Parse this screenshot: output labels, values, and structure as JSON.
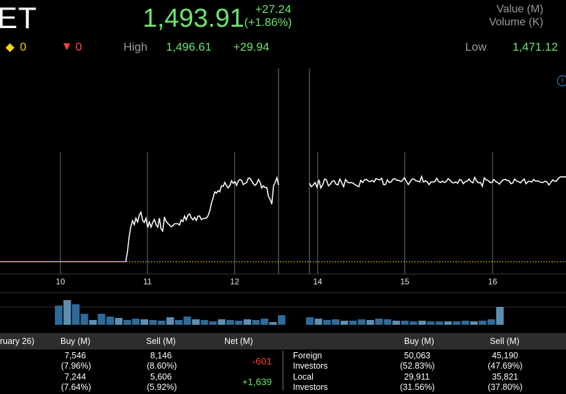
{
  "quote": {
    "symbol": "ET",
    "price": "1,493.91",
    "change": "+27.24",
    "change_pct": "(+1.86%)",
    "up_count": "0",
    "down_count": "0",
    "high_label": "High",
    "high_value": "1,496.61",
    "high_change": "+29.94",
    "low_label": "Low",
    "low_value": "1,471.12",
    "legend_value": "Value (M)",
    "legend_volume": "Volume (K)"
  },
  "icons": {
    "up": "diamond-icon",
    "down": "down-triangle-icon",
    "info": "info-icon"
  },
  "colors": {
    "up": "#6fe36f",
    "down": "#ff453a",
    "line": "#ffffff",
    "baseline": "#f2d21b",
    "volume": "#3b6f9e"
  },
  "chart_data": {
    "type": "line",
    "x_ticks": [
      "10",
      "11",
      "12",
      "14",
      "15",
      "16"
    ],
    "series": [
      {
        "values": [
          1466.7,
          1466.7,
          1466.7,
          1466.7,
          1466.7,
          1466.7,
          1466.7,
          1466.7,
          1466.7,
          1466.7,
          1466.7,
          1466.7,
          1466.7,
          1466.7,
          1466.7,
          1466.7,
          1466.7,
          1466.7,
          1466.7,
          1466.7,
          1466.7,
          1466.7,
          1466.7,
          1466.7,
          1466.7,
          1466.7,
          1466.7,
          1466.7,
          1466.7,
          1466.7,
          1466.7,
          1466.7,
          1466.7,
          1466.7,
          1466.7,
          1466.7,
          1466.7,
          1466.7,
          1466.7,
          1466.7,
          1466.7,
          1466.7,
          1466.7,
          1466.7,
          1466.7,
          1466.7,
          1466.7,
          1466.7,
          1466.7,
          1466.7,
          1466.7,
          1466.7,
          1466.7,
          1466.7,
          1466.7,
          1466.7,
          1466.7,
          1466.7,
          1466.7,
          1466.7,
          1466.7,
          1466.7,
          1466.7,
          1466.7,
          1466.7,
          1466.7,
          1466.7,
          1466.7,
          1466.7,
          1466.7,
          1466.7,
          1466.7,
          1466.7,
          1466.7,
          1466.7,
          1466.7,
          1469.2,
          1472.6,
          1475.0,
          1476.3,
          1475.4,
          1476.9,
          1476.0,
          1477.6,
          1478.3,
          1476.4,
          1475.9,
          1476.9,
          1474.7,
          1476.0,
          1474.8,
          1475.9,
          1476.6,
          1475.4,
          1474.8,
          1476.9,
          1474.4,
          1473.9,
          1477.2,
          1476.1,
          1475.7,
          1475.3,
          1474.9,
          1475.1,
          1475.6,
          1475.6,
          1475.6,
          1475.3,
          1476.5,
          1476.1,
          1477.4,
          1476.5,
          1477.6,
          1477.9,
          1477.0,
          1476.5,
          1477.1,
          1476.4,
          1477.4,
          1477.4,
          1476.6,
          1476.8,
          1476.9,
          1476.9,
          1477.5,
          1478.6,
          1480.4,
          1481.7,
          1483.1,
          1482.8,
          1483.4,
          1483.1,
          1484.5,
          1484.4,
          1485.3,
          1484.5,
          1484.0,
          1484.6,
          1485.7,
          1485.1,
          1485.5,
          1484.6,
          1485.7,
          1486.0,
          1485.8,
          1484.8,
          1485.1,
          1485.3,
          1486.3,
          1486.3,
          1485.6,
          1485.0,
          1484.6,
          1485.0,
          1486.0,
          1485.3,
          1484.0,
          1484.5,
          1484.1,
          1484.1,
          1482.0,
          1481.3,
          1480.2,
          1484.5,
          1485.3,
          1486.4,
          1484.7,
          1485.1,
          1484.3,
          1484.7,
          1485.3,
          1484.2,
          1485.9,
          1484.0,
          1484.8,
          1486.1,
          1485.9,
          1484.5,
          1484.9,
          1485.6,
          1485.7,
          1484.9,
          1484.7,
          1486.1,
          1485.2,
          1484.3,
          1486.0,
          1485.4,
          1485.2,
          1485.3,
          1485.1,
          1484.8,
          1484.5,
          1484.3,
          1485.8,
          1485.3,
          1485.9,
          1486.0,
          1485.6,
          1485.5,
          1485.8,
          1485.4,
          1486.2,
          1486.0,
          1485.9,
          1486.3,
          1484.8,
          1484.8,
          1485.9,
          1485.3,
          1485.4,
          1486.1,
          1486.2,
          1485.8,
          1485.8,
          1485.5,
          1485.8,
          1486.4,
          1485.6,
          1484.8,
          1485.4,
          1486.1,
          1486.1,
          1485.7,
          1485.6,
          1485.4,
          1486.7,
          1485.4,
          1485.7,
          1485.4,
          1484.8,
          1485.4,
          1485.4,
          1485.5,
          1486.3,
          1485.5,
          1485.3,
          1485.6,
          1485.3,
          1485.5,
          1486.2,
          1485.8,
          1485.3,
          1485.2,
          1485.4,
          1485.1,
          1486.0,
          1485.8,
          1485.0,
          1485.5,
          1485.6,
          1486.1,
          1485.5,
          1485.2,
          1486.5,
          1485.6,
          1485.2,
          1485.3,
          1484.4,
          1486.4,
          1485.9,
          1485.8,
          1485.3,
          1485.3,
          1486.0,
          1485.5,
          1485.3,
          1484.9,
          1485.5,
          1485.9,
          1486.0,
          1485.8,
          1485.7,
          1485.0,
          1485.2,
          1486.1,
          1485.6,
          1485.5,
          1485.2,
          1485.7,
          1486.1,
          1485.0,
          1485.5,
          1485.6,
          1485.4,
          1486.0,
          1485.6,
          1485.7,
          1485.5,
          1485.3,
          1485.3,
          1485.6,
          1485.4,
          1484.7,
          1485.3,
          1485.9,
          1485.6,
          1485.6,
          1486.3,
          1486.6,
          1486.6,
          1486.6,
          1486.6
        ]
      }
    ],
    "baseline": 1466.67
  },
  "table": {
    "date_header": "ruary 26)",
    "buy_header": "Buy (M)",
    "sell_header": "Sell (M)",
    "net_header": "Net (M)",
    "right_buy_header": "Buy (M)",
    "right_sell_header": "Sell (M)",
    "rows_left": [
      {
        "buy": "7,546",
        "buy_pct": "(7.96%)",
        "sell": "8,146",
        "sell_pct": "(8.60%)",
        "net": "-601"
      },
      {
        "buy": "7,244",
        "buy_pct": "(7.64%)",
        "sell": "5,606",
        "sell_pct": "(5.92%)",
        "net": "+1,639"
      }
    ],
    "rows_right": [
      {
        "label1": "Foreign",
        "label2": "Investors",
        "buy": "50,063",
        "buy_pct": "(52.83%)",
        "sell": "45,190",
        "sell_pct": "(47.69%)"
      },
      {
        "label1": "Local",
        "label2": "Investors",
        "buy": "29,911",
        "buy_pct": "(31.56%)",
        "sell": "35,821",
        "sell_pct": "(37.80%)"
      }
    ]
  }
}
